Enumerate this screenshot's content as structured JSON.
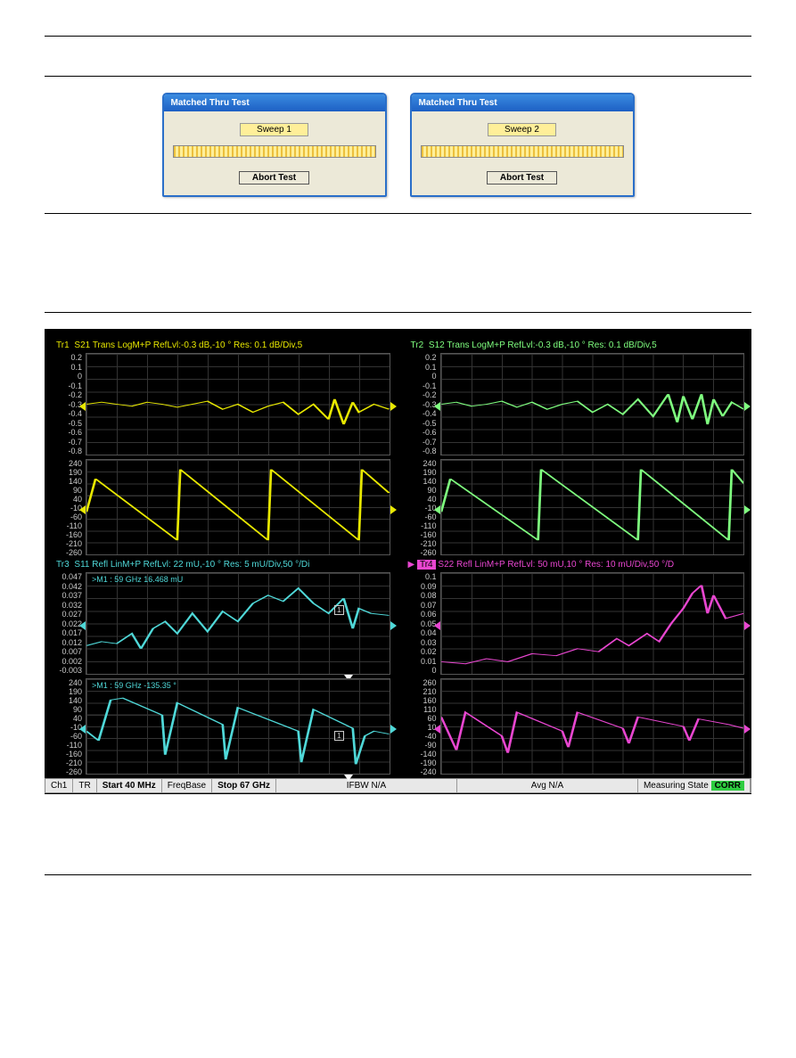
{
  "dialogs": {
    "title": "Matched Thru Test",
    "sweep1": "Sweep 1",
    "sweep2": "Sweep 2",
    "abort": "Abort Test"
  },
  "colors": {
    "tr1": "#e8e800",
    "tr2": "#7fff7f",
    "tr3": "#4fd8d8",
    "tr4": "#e846d0",
    "tri_yellow": "#e8e800",
    "tri_green": "#7fff7f",
    "tri_cyan": "#4fd8d8",
    "tri_magenta": "#e846d0",
    "tag_bg_tr4": "#e846d0"
  },
  "traces": {
    "tr1": {
      "tag": "Tr1",
      "label": "S21 Trans LogM+P RefLvl:-0.3 dB,-10 ° Res: 0.1 dB/Div,5"
    },
    "tr2": {
      "tag": "Tr2",
      "label": "S12 Trans LogM+P RefLvl:-0.3 dB,-10 ° Res: 0.1 dB/Div,5"
    },
    "tr3": {
      "tag": "Tr3",
      "label": "S11 Refl LinM+P RefLvl: 22 mU,-10 ° Res: 5 mU/Div,50 °/Di"
    },
    "tr4": {
      "tag": "Tr4",
      "label": "S22 Refl LinM+P RefLvl: 50 mU,10 ° Res: 10 mU/Div,50 °/D"
    }
  },
  "yaxis": {
    "mag_db": [
      "0.2",
      "0.1",
      "0",
      "-0.1",
      "-0.2",
      "-0.3",
      "-0.4",
      "-0.5",
      "-0.6",
      "-0.7",
      "-0.8"
    ],
    "phase": [
      "240",
      "190",
      "140",
      "90",
      "40",
      "-10",
      "-60",
      "-110",
      "-160",
      "-210",
      "-260"
    ],
    "tr3_mag": [
      "0.047",
      "0.042",
      "0.037",
      "0.032",
      "0.027",
      "0.022",
      "0.017",
      "0.012",
      "0.007",
      "0.002",
      "-0.003"
    ],
    "tr4_mag": [
      "0.1",
      "0.09",
      "0.08",
      "0.07",
      "0.06",
      "0.05",
      "0.04",
      "0.03",
      "0.02",
      "0.01",
      "0"
    ],
    "tr4_phase": [
      "260",
      "210",
      "160",
      "110",
      "60",
      "10",
      "-40",
      "-90",
      "-140",
      "-190",
      "-240"
    ]
  },
  "markers": {
    "tr3_mag": ">M1 :   59 GHz  16.468 mU",
    "tr3_phase": ">M1 :   59 GHz  -135.35 °",
    "box1": "1"
  },
  "status": {
    "ch": "Ch1",
    "tr": "TR",
    "start": "Start 40 MHz",
    "freqbase": "FreqBase",
    "stop": "Stop 67 GHz",
    "ifbw": "IFBW N/A",
    "avg": "Avg N/A",
    "meas": "Measuring State",
    "corr": "CORR"
  },
  "plotdata": {
    "tr1_mag": "0,50 5,48 10,50 15,52 20,48 25,50 30,53 35,50 40,47 45,55 50,50 55,58 60,52 65,48 70,60 75,50 80,65 82,45 85,70 88,48 90,58 95,50 100,55",
    "tr2_mag": "0,50 5,48 10,52 15,50 20,47 25,53 30,48 35,55 40,50 45,47 50,58 55,50 60,60 65,45 70,62 75,40 78,68 80,42 83,65 86,40 88,70 90,45 93,62 96,48 100,55",
    "tr1_phase": "0,55 3,20 30,85 31,10 60,85 61,10 90,85 91,10 100,35",
    "tr2_phase": "0,55 3,20 32,85 33,10 65,85 66,10 95,85 96,10 100,25",
    "tr3_mag": "0,72 5,68 10,70 15,60 18,75 22,55 26,48 30,60 35,40 40,58 45,38 50,48 55,30 60,22 65,28 70,15 75,30 80,40 85,25 88,55 90,35 94,40 100,42",
    "tr3_phase": "0,55 4,65 8,22 12,20 25,38 26,80 30,25 45,48 46,85 50,30 70,55 71,88 75,32 88,52 89,90 92,60 95,55 100,58",
    "tr4_mag": "0,88 8,90 15,85 22,88 30,80 38,82 45,75 52,78 58,65 62,72 68,60 72,68 76,50 80,35 83,20 86,12 88,40 90,22 94,45 100,40",
    "tr4_phase": "0,40 5,75 8,35 20,60 22,78 25,35 40,55 42,72 45,35 60,52 62,68 65,40 80,50 82,65 85,42 95,48 100,52"
  }
}
